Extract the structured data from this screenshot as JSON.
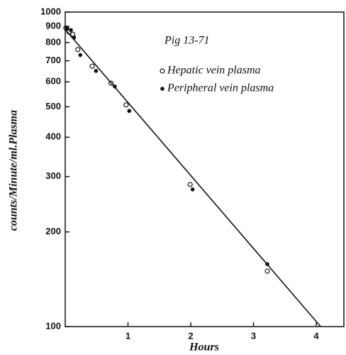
{
  "chart_data": {
    "type": "scatter",
    "annotation": "Pig 13-71",
    "xlabel": "Hours",
    "ylabel": "counts/Minute/ml.Plasma",
    "xlim": [
      0,
      4.44
    ],
    "xticks": [
      1,
      2,
      3,
      4
    ],
    "ylim": [
      100,
      1000
    ],
    "yscale": "log",
    "yticks": [
      100,
      200,
      300,
      400,
      500,
      600,
      700,
      800,
      900,
      1000
    ],
    "grid": false,
    "legend": "upper right",
    "series": [
      {
        "name": "Hepatic vein plasma",
        "marker": "open",
        "color": "#111",
        "x": [
          0.01,
          0.06,
          0.12,
          0.2,
          0.43,
          0.73,
          0.97,
          1.99,
          3.22
        ],
        "values": [
          890,
          865,
          850,
          760,
          673,
          594,
          507,
          283,
          150
        ]
      },
      {
        "name": "Peripheral vein plasma",
        "marker": "filled",
        "color": "#111",
        "x": [
          0.03,
          0.09,
          0.14,
          0.24,
          0.49,
          0.79,
          1.02,
          2.03,
          3.22
        ],
        "values": [
          890,
          877,
          830,
          730,
          650,
          580,
          485,
          273,
          158
        ]
      }
    ],
    "fit": {
      "color": "#111",
      "x": [
        0,
        4.07
      ],
      "values": [
        880,
        100
      ]
    }
  }
}
